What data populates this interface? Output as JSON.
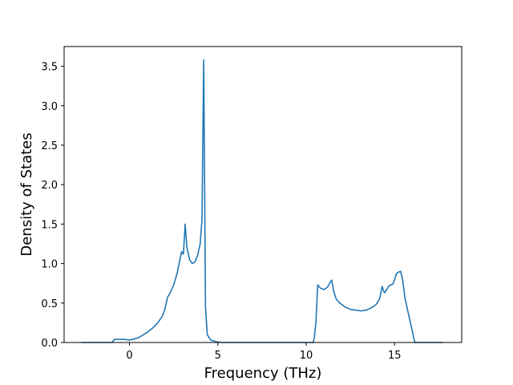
{
  "chart_data": {
    "type": "line",
    "title": "",
    "xlabel": "Frequency (THz)",
    "ylabel": "Density of States",
    "xlim": [
      -3.7,
      18.8
    ],
    "ylim": [
      0.0,
      3.75
    ],
    "xticks": [
      0,
      5,
      10,
      15
    ],
    "xtick_labels": [
      "0",
      "5",
      "10",
      "15"
    ],
    "yticks": [
      0.0,
      0.5,
      1.0,
      1.5,
      2.0,
      2.5,
      3.0,
      3.5
    ],
    "ytick_labels": [
      "0.0",
      "0.5",
      "1.0",
      "1.5",
      "2.0",
      "2.5",
      "3.0",
      "3.5"
    ],
    "grid": false,
    "line_color": "#1f77b4",
    "series": [
      {
        "x": [
          -2.7,
          -1.0,
          -0.85,
          -0.6,
          -0.3,
          0.0,
          0.2,
          0.5,
          0.8,
          1.0,
          1.3,
          1.6,
          1.85,
          2.0,
          2.1,
          2.15,
          2.3,
          2.5,
          2.7,
          2.85,
          2.95,
          3.05,
          3.15,
          3.25,
          3.4,
          3.55,
          3.7,
          3.85,
          4.0,
          4.1,
          4.2,
          4.25,
          4.3,
          4.4,
          4.6,
          4.9,
          5.2,
          6.0,
          8.0,
          10.4,
          10.45,
          10.55,
          10.65,
          10.8,
          11.0,
          11.2,
          11.35,
          11.45,
          11.55,
          11.7,
          11.9,
          12.2,
          12.5,
          12.8,
          13.1,
          13.4,
          13.7,
          13.95,
          14.15,
          14.3,
          14.38,
          14.45,
          14.55,
          14.7,
          14.9,
          15.0,
          15.1,
          15.2,
          15.35,
          15.45,
          15.6,
          15.8,
          15.95,
          16.1,
          16.15,
          17.7
        ],
        "y": [
          0.0,
          0.0,
          0.04,
          0.04,
          0.04,
          0.03,
          0.04,
          0.06,
          0.1,
          0.13,
          0.18,
          0.25,
          0.33,
          0.42,
          0.52,
          0.57,
          0.63,
          0.73,
          0.88,
          1.05,
          1.15,
          1.12,
          1.5,
          1.2,
          1.05,
          1.0,
          1.02,
          1.1,
          1.25,
          1.55,
          3.58,
          2.0,
          0.45,
          0.1,
          0.03,
          0.01,
          0.0,
          0.0,
          0.0,
          0.0,
          0.05,
          0.25,
          0.73,
          0.69,
          0.67,
          0.7,
          0.76,
          0.79,
          0.65,
          0.55,
          0.5,
          0.45,
          0.42,
          0.41,
          0.4,
          0.41,
          0.44,
          0.48,
          0.55,
          0.71,
          0.65,
          0.63,
          0.67,
          0.72,
          0.74,
          0.79,
          0.87,
          0.89,
          0.9,
          0.8,
          0.55,
          0.35,
          0.2,
          0.04,
          0.0,
          0.0
        ]
      }
    ]
  }
}
